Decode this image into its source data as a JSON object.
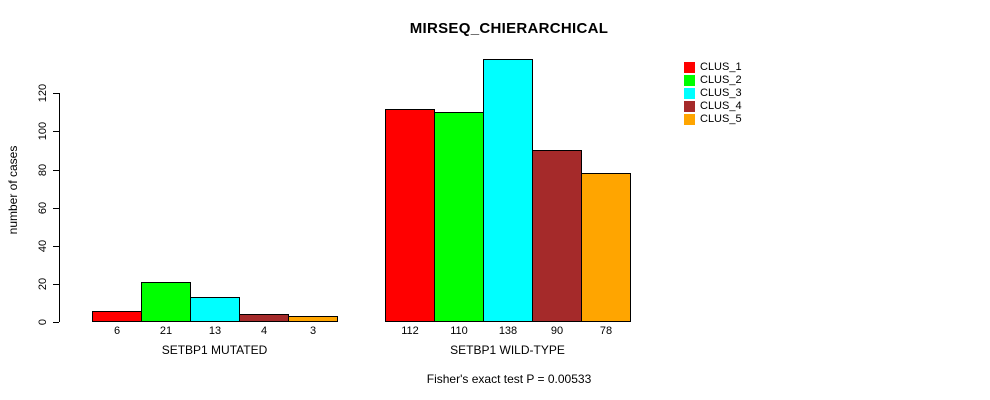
{
  "title": "MIRSEQ_CHIERARCHICAL",
  "footer": "Fisher's exact test P = 0.00533",
  "y_axis": {
    "label": "number of cases",
    "ticks": [
      0,
      20,
      40,
      60,
      80,
      100,
      120
    ]
  },
  "chart_data": {
    "type": "bar",
    "title": "MIRSEQ_CHIERARCHICAL",
    "ylabel": "number of cases",
    "xlabel": "",
    "ylim": [
      0,
      140
    ],
    "yticks": [
      0,
      20,
      40,
      60,
      80,
      100,
      120
    ],
    "grid": false,
    "legend_position": "top-right",
    "categories": [
      "SETBP1 MUTATED",
      "SETBP1 WILD-TYPE"
    ],
    "series": [
      {
        "name": "CLUS_1",
        "color": "#FF0000",
        "values": [
          6,
          112
        ]
      },
      {
        "name": "CLUS_2",
        "color": "#00FF00",
        "values": [
          21,
          110
        ]
      },
      {
        "name": "CLUS_3",
        "color": "#00FFFF",
        "values": [
          13,
          138
        ]
      },
      {
        "name": "CLUS_4",
        "color": "#A52A2A",
        "values": [
          4,
          90
        ]
      },
      {
        "name": "CLUS_5",
        "color": "#FFA500",
        "values": [
          3,
          78
        ]
      }
    ],
    "bar_value_labels": [
      [
        6,
        21,
        13,
        4,
        3
      ],
      [
        112,
        110,
        138,
        90,
        78
      ]
    ],
    "annotation": "Fisher's exact test P = 0.00533"
  }
}
